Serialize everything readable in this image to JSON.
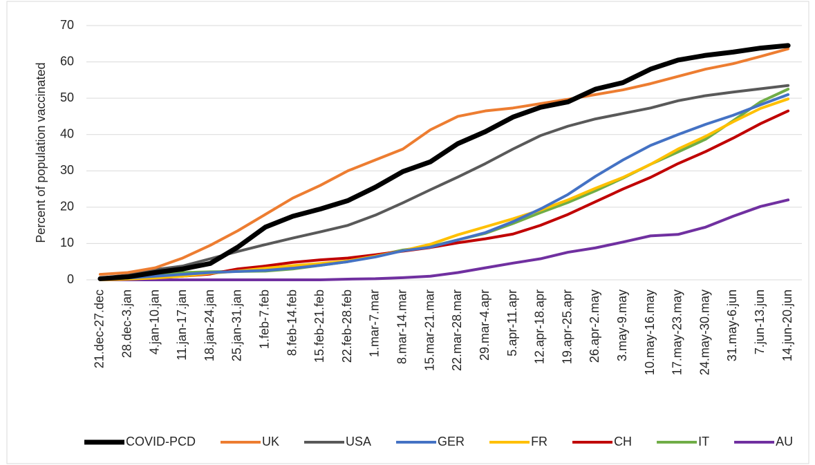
{
  "chart_data": {
    "type": "line",
    "yaxis_label": "Percent of population vaccinated",
    "categories": [
      "21.dec-27.dec",
      "28.dec-3.jan",
      "4.jan-10.jan",
      "11.jan-17.jan",
      "18.jan-24.jan",
      "25.jan-31.jan",
      "1.feb-7.feb",
      "8.feb-14.feb",
      "15.feb-21.feb",
      "22.feb-28.feb",
      "1.mar-7.mar",
      "8.mar-14.mar",
      "15.mar-21.mar",
      "22.mar-28.mar",
      "29.mar-4.apr",
      "5.apr-11.apr",
      "12.apr-18.apr",
      "19.apr-25.apr",
      "26.apr-2.may",
      "3.may-9.may",
      "10.may-16.may",
      "17.may-23.may",
      "24.may-30.may",
      "31.may-6.jun",
      "7.jun-13.jun",
      "14.jun-20.jun"
    ],
    "series": [
      {
        "name": "COVID-PCD",
        "color": "#000000",
        "values": [
          0.3,
          0.8,
          2,
          3,
          4.5,
          9,
          14.5,
          17.5,
          19.5,
          21.8,
          25.5,
          29.8,
          32.5,
          37.5,
          40.8,
          44.8,
          47.5,
          49,
          52.5,
          54.3,
          58,
          60.5,
          61.8,
          62.7,
          63.8,
          64.5
        ]
      },
      {
        "name": "UK",
        "color": "#ed7d31",
        "values": [
          1.5,
          2,
          3.3,
          6,
          9.5,
          13.5,
          18,
          22.5,
          26,
          30,
          33,
          36,
          41.3,
          45,
          46.5,
          47.3,
          48.5,
          49.7,
          51,
          52.3,
          54,
          56,
          58,
          59.5,
          61.5,
          63.6
        ]
      },
      {
        "name": "USA",
        "color": "#595959",
        "values": [
          0.5,
          1.3,
          2.8,
          3.8,
          5.8,
          7.8,
          9.7,
          11.5,
          13.2,
          15,
          17.8,
          21.2,
          24.8,
          28.3,
          32,
          36,
          39.7,
          42.3,
          44.3,
          45.8,
          47.3,
          49.3,
          50.7,
          51.7,
          52.6,
          53.5
        ]
      },
      {
        "name": "GER",
        "color": "#4472c4",
        "values": [
          0.2,
          0.5,
          1,
          1.5,
          2,
          2.3,
          2.6,
          3.2,
          4,
          5,
          6.3,
          8,
          9,
          11,
          13,
          16,
          19.5,
          23.5,
          28.5,
          33,
          37,
          40,
          42.8,
          45.3,
          48.2,
          51
        ]
      },
      {
        "name": "FR",
        "color": "#ffc000",
        "values": [
          0,
          0.2,
          0.5,
          1,
          1.8,
          2.4,
          3.2,
          3.9,
          4.5,
          5.2,
          6.5,
          8,
          9.8,
          12.4,
          14.6,
          16.8,
          19.2,
          22,
          25.2,
          28.2,
          31.8,
          36,
          39.5,
          43.5,
          47.2,
          49.8
        ]
      },
      {
        "name": "CH",
        "color": "#c00000",
        "values": [
          0.1,
          0.3,
          0.6,
          1,
          1.6,
          3,
          3.8,
          4.8,
          5.5,
          6,
          6.9,
          7.9,
          8.9,
          10.2,
          11.3,
          12.6,
          15,
          18,
          21.5,
          25,
          28.2,
          32,
          35.3,
          39,
          43,
          46.5
        ]
      },
      {
        "name": "IT",
        "color": "#70ad47",
        "values": [
          0.3,
          0.7,
          1.3,
          2,
          2.2,
          2.3,
          2.4,
          3,
          4,
          5,
          6.6,
          8.2,
          9.2,
          11,
          12.8,
          15.5,
          18.5,
          21.3,
          24.5,
          28,
          31.8,
          35.2,
          38.7,
          43.8,
          49,
          52.5
        ]
      },
      {
        "name": "AU",
        "color": "#7030a0",
        "values": [
          0,
          0,
          0,
          0,
          0,
          0,
          0,
          0,
          0,
          0.2,
          0.3,
          0.6,
          1,
          2,
          3.3,
          4.6,
          5.8,
          7.6,
          8.8,
          10.4,
          12.1,
          12.5,
          14.5,
          17.5,
          20.2,
          22
        ]
      }
    ],
    "ylim": [
      0,
      70
    ],
    "yticks": [
      0,
      10,
      20,
      30,
      40,
      50,
      60,
      70
    ],
    "grid": true
  }
}
